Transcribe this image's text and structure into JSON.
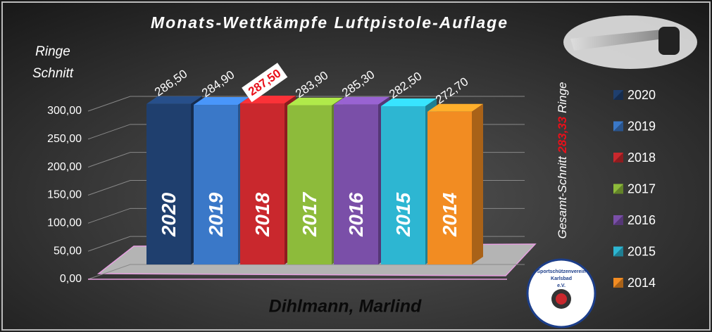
{
  "chart_data": {
    "type": "bar3d",
    "title": "Monats-Wettkämpfe Luftpistole-Auflage",
    "ylabel": "Ringe Schnitt",
    "caption": "Dihlmann, Marlind",
    "categories": [
      "2020",
      "2019",
      "2018",
      "2017",
      "2016",
      "2015",
      "2014"
    ],
    "values": [
      286.5,
      284.9,
      287.5,
      283.9,
      285.3,
      282.5,
      272.7
    ],
    "value_labels": [
      "286,50",
      "284,90",
      "287,50",
      "283,90",
      "285,30",
      "282,50",
      "272,70"
    ],
    "colors": [
      "#1f3f6e",
      "#3a78c8",
      "#c9282d",
      "#8dbb3b",
      "#7a4fa8",
      "#2db6d2",
      "#f28c22"
    ],
    "highlight_index": 2,
    "ylim": [
      0,
      300
    ],
    "yticks": [
      {
        "value": 0,
        "label": "0,00"
      },
      {
        "value": 50,
        "label": "50,00"
      },
      {
        "value": 100,
        "label": "100,00"
      },
      {
        "value": 150,
        "label": "150,00"
      },
      {
        "value": 200,
        "label": "200,00"
      },
      {
        "value": 250,
        "label": "250,00"
      },
      {
        "value": 300,
        "label": "300,00"
      }
    ],
    "grid": true,
    "annotation": {
      "before": "Gesamt-Schnitt",
      "value": 283.33,
      "label": "283,33",
      "after": "Ringe"
    },
    "logo": [
      "Sportschützenverein",
      "Karlsbad",
      "e.V."
    ]
  }
}
